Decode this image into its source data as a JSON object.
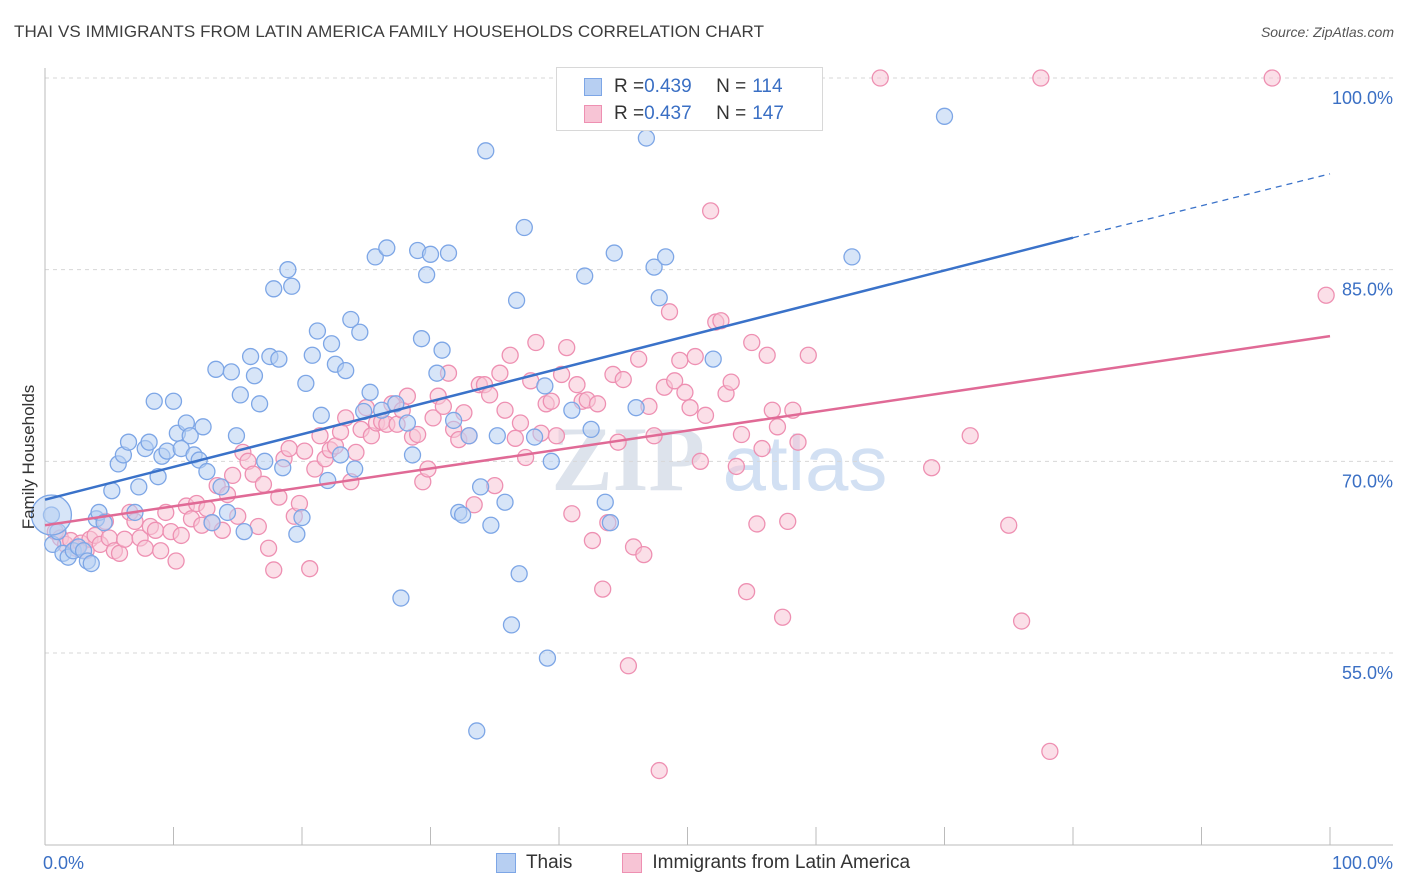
{
  "title": "THAI VS IMMIGRANTS FROM LATIN AMERICA FAMILY HOUSEHOLDS CORRELATION CHART",
  "source": "Source: ZipAtlas.com",
  "watermark": {
    "zip": "ZIP",
    "atlas": "atlas"
  },
  "legend": {
    "rows": [
      {
        "r_label": "R = ",
        "r_value": "0.439",
        "n_label": "N = ",
        "n_value": "114"
      },
      {
        "r_label": "R = ",
        "r_value": "0.437",
        "n_label": "N = ",
        "n_value": "147"
      }
    ]
  },
  "bottom_legend": {
    "thais": "Thais",
    "latin": "Immigrants from Latin America"
  },
  "colors": {
    "blue": "#3a72c9",
    "blue_fill": "#b7cff2",
    "blue_stroke": "#7da6e6",
    "pink": "#e06a96",
    "pink_fill": "#f7c4d5",
    "pink_stroke": "#ee90b2",
    "axis_text": "#3a6fc4",
    "grid": "#d7d7d7"
  },
  "chart_data": {
    "type": "scatter",
    "title": "THAI VS IMMIGRANTS FROM LATIN AMERICA FAMILY HOUSEHOLDS CORRELATION CHART",
    "xlabel": "",
    "ylabel": "Family Households",
    "xlim": [
      0,
      100
    ],
    "ylim": [
      40,
      102
    ],
    "x_tick_labels": [
      "0.0%",
      "100.0%"
    ],
    "y_ticks": [
      55,
      70,
      85,
      100
    ],
    "y_tick_labels": [
      "55.0%",
      "70.0%",
      "85.0%",
      "100.0%"
    ],
    "grid": "horizontal dashed",
    "legend_position": "top-center",
    "series": [
      {
        "name": "Thais",
        "color": "#3a72c9",
        "R": 0.439,
        "N": 114,
        "trend": {
          "x0": 0,
          "y0": 67.0,
          "x1": 80,
          "y1": 87.5,
          "dashed_to_x": 100,
          "dashed_to_y": 92.5
        },
        "points": [
          [
            0.5,
            65.8
          ],
          [
            0.6,
            63.5
          ],
          [
            1.0,
            64.5
          ],
          [
            1.4,
            62.8
          ],
          [
            1.8,
            62.5
          ],
          [
            2.2,
            63.0
          ],
          [
            2.6,
            63.3
          ],
          [
            3.0,
            63.0
          ],
          [
            3.3,
            62.2
          ],
          [
            3.6,
            62.0
          ],
          [
            4.0,
            65.5
          ],
          [
            4.2,
            66.0
          ],
          [
            4.6,
            65.2
          ],
          [
            5.2,
            67.7
          ],
          [
            5.7,
            69.8
          ],
          [
            6.1,
            70.5
          ],
          [
            6.5,
            71.5
          ],
          [
            7.0,
            66.0
          ],
          [
            7.3,
            68.0
          ],
          [
            7.8,
            71.0
          ],
          [
            8.1,
            71.5
          ],
          [
            8.5,
            74.7
          ],
          [
            8.8,
            68.8
          ],
          [
            9.1,
            70.4
          ],
          [
            9.5,
            70.8
          ],
          [
            10.0,
            74.7
          ],
          [
            10.3,
            72.2
          ],
          [
            10.6,
            71.0
          ],
          [
            11.0,
            73.0
          ],
          [
            11.3,
            72.0
          ],
          [
            11.6,
            70.5
          ],
          [
            12.0,
            70.1
          ],
          [
            12.3,
            72.7
          ],
          [
            12.6,
            69.2
          ],
          [
            13.0,
            65.2
          ],
          [
            13.3,
            77.2
          ],
          [
            13.7,
            68.0
          ],
          [
            14.2,
            66.0
          ],
          [
            14.5,
            77.0
          ],
          [
            14.9,
            72.0
          ],
          [
            15.2,
            75.2
          ],
          [
            15.5,
            64.5
          ],
          [
            16.0,
            78.2
          ],
          [
            16.3,
            76.7
          ],
          [
            16.7,
            74.5
          ],
          [
            17.1,
            70.0
          ],
          [
            17.5,
            78.2
          ],
          [
            17.8,
            83.5
          ],
          [
            18.2,
            78.0
          ],
          [
            18.5,
            69.5
          ],
          [
            18.9,
            85.0
          ],
          [
            19.2,
            83.7
          ],
          [
            19.6,
            64.3
          ],
          [
            20.0,
            65.6
          ],
          [
            20.3,
            76.1
          ],
          [
            20.8,
            78.3
          ],
          [
            21.2,
            80.2
          ],
          [
            21.5,
            73.6
          ],
          [
            22.0,
            68.5
          ],
          [
            22.3,
            79.2
          ],
          [
            22.6,
            77.6
          ],
          [
            23.0,
            70.5
          ],
          [
            23.4,
            77.1
          ],
          [
            23.8,
            81.1
          ],
          [
            24.1,
            69.4
          ],
          [
            24.5,
            80.1
          ],
          [
            24.8,
            73.9
          ],
          [
            25.3,
            75.4
          ],
          [
            25.7,
            86.0
          ],
          [
            26.2,
            74.0
          ],
          [
            26.6,
            86.7
          ],
          [
            27.3,
            74.5
          ],
          [
            27.7,
            59.3
          ],
          [
            28.2,
            73.0
          ],
          [
            28.6,
            70.5
          ],
          [
            29.0,
            86.5
          ],
          [
            29.3,
            79.6
          ],
          [
            29.7,
            84.6
          ],
          [
            30.0,
            86.2
          ],
          [
            30.5,
            76.9
          ],
          [
            30.9,
            78.7
          ],
          [
            31.4,
            86.3
          ],
          [
            31.8,
            73.2
          ],
          [
            32.2,
            66.0
          ],
          [
            32.5,
            65.8
          ],
          [
            33.0,
            72.0
          ],
          [
            33.6,
            48.9
          ],
          [
            33.9,
            68.0
          ],
          [
            34.3,
            94.3
          ],
          [
            34.7,
            65.0
          ],
          [
            35.2,
            72.0
          ],
          [
            35.8,
            66.8
          ],
          [
            36.3,
            57.2
          ],
          [
            36.7,
            82.6
          ],
          [
            36.9,
            61.2
          ],
          [
            37.3,
            88.3
          ],
          [
            38.1,
            71.9
          ],
          [
            38.9,
            75.9
          ],
          [
            39.1,
            54.6
          ],
          [
            39.4,
            70.0
          ],
          [
            41.0,
            74.0
          ],
          [
            42.0,
            84.5
          ],
          [
            42.5,
            72.5
          ],
          [
            43.6,
            66.8
          ],
          [
            44.0,
            65.2
          ],
          [
            44.3,
            86.3
          ],
          [
            46.8,
            95.3
          ],
          [
            47.4,
            85.2
          ],
          [
            47.8,
            82.8
          ],
          [
            48.3,
            86.0
          ],
          [
            62.8,
            86.0
          ],
          [
            70.0,
            97.0
          ],
          [
            46.0,
            74.2
          ],
          [
            52.0,
            78.0
          ]
        ]
      },
      {
        "name": "Immigrants from Latin America",
        "color": "#e06a96",
        "R": 0.437,
        "N": 147,
        "trend": {
          "x0": 0,
          "y0": 65.0,
          "x1": 100,
          "y1": 79.8
        },
        "points": [
          [
            0.8,
            64.5
          ],
          [
            1.2,
            64.0
          ],
          [
            1.6,
            63.5
          ],
          [
            2.0,
            63.8
          ],
          [
            2.4,
            63.2
          ],
          [
            2.8,
            63.6
          ],
          [
            3.2,
            63.0
          ],
          [
            3.5,
            63.9
          ],
          [
            3.9,
            64.2
          ],
          [
            4.3,
            63.5
          ],
          [
            4.7,
            65.3
          ],
          [
            5.0,
            64.0
          ],
          [
            5.4,
            63.0
          ],
          [
            5.8,
            62.8
          ],
          [
            6.2,
            63.9
          ],
          [
            6.6,
            66.0
          ],
          [
            7.0,
            65.3
          ],
          [
            7.4,
            64.0
          ],
          [
            7.8,
            63.2
          ],
          [
            8.2,
            64.9
          ],
          [
            8.6,
            64.6
          ],
          [
            9.0,
            63.0
          ],
          [
            9.4,
            66.0
          ],
          [
            9.8,
            64.5
          ],
          [
            10.2,
            62.2
          ],
          [
            10.6,
            64.2
          ],
          [
            11.0,
            66.5
          ],
          [
            11.4,
            65.5
          ],
          [
            11.8,
            66.7
          ],
          [
            12.2,
            65.0
          ],
          [
            12.6,
            66.3
          ],
          [
            13.0,
            65.2
          ],
          [
            13.4,
            68.1
          ],
          [
            13.8,
            64.6
          ],
          [
            14.2,
            67.4
          ],
          [
            14.6,
            68.9
          ],
          [
            15.0,
            65.7
          ],
          [
            15.4,
            70.7
          ],
          [
            15.8,
            70.0
          ],
          [
            16.2,
            69.0
          ],
          [
            16.6,
            64.9
          ],
          [
            17.0,
            68.2
          ],
          [
            17.4,
            63.2
          ],
          [
            17.8,
            61.5
          ],
          [
            18.2,
            67.2
          ],
          [
            18.6,
            70.2
          ],
          [
            19.0,
            71.0
          ],
          [
            19.4,
            65.7
          ],
          [
            19.8,
            66.7
          ],
          [
            20.2,
            70.8
          ],
          [
            20.6,
            61.6
          ],
          [
            21.0,
            69.4
          ],
          [
            21.4,
            72.0
          ],
          [
            21.8,
            70.2
          ],
          [
            22.2,
            70.9
          ],
          [
            22.6,
            71.2
          ],
          [
            23.0,
            72.3
          ],
          [
            23.4,
            73.4
          ],
          [
            23.8,
            68.4
          ],
          [
            24.2,
            70.7
          ],
          [
            24.6,
            72.5
          ],
          [
            25.0,
            74.2
          ],
          [
            25.4,
            72.0
          ],
          [
            25.8,
            73.0
          ],
          [
            26.2,
            73.1
          ],
          [
            26.6,
            72.9
          ],
          [
            27.0,
            74.5
          ],
          [
            27.4,
            72.9
          ],
          [
            27.8,
            74.0
          ],
          [
            28.2,
            75.1
          ],
          [
            28.6,
            71.9
          ],
          [
            29.0,
            72.1
          ],
          [
            29.4,
            68.4
          ],
          [
            29.8,
            69.4
          ],
          [
            30.2,
            73.4
          ],
          [
            30.6,
            75.1
          ],
          [
            31.0,
            74.3
          ],
          [
            31.4,
            76.9
          ],
          [
            31.8,
            72.5
          ],
          [
            32.2,
            71.7
          ],
          [
            32.6,
            73.8
          ],
          [
            33.0,
            72.0
          ],
          [
            33.4,
            66.6
          ],
          [
            33.8,
            76.0
          ],
          [
            34.2,
            76.0
          ],
          [
            34.6,
            75.2
          ],
          [
            35.0,
            68.1
          ],
          [
            35.4,
            76.9
          ],
          [
            35.8,
            74.0
          ],
          [
            36.2,
            78.3
          ],
          [
            36.6,
            71.8
          ],
          [
            37.0,
            73.0
          ],
          [
            37.4,
            70.3
          ],
          [
            37.8,
            76.3
          ],
          [
            38.2,
            79.3
          ],
          [
            38.6,
            72.2
          ],
          [
            39.0,
            74.5
          ],
          [
            39.4,
            74.7
          ],
          [
            39.8,
            72.0
          ],
          [
            40.2,
            76.8
          ],
          [
            40.6,
            78.9
          ],
          [
            41.0,
            65.9
          ],
          [
            41.4,
            76.0
          ],
          [
            41.8,
            74.7
          ],
          [
            42.2,
            74.8
          ],
          [
            42.6,
            63.8
          ],
          [
            43.0,
            74.5
          ],
          [
            43.4,
            60.0
          ],
          [
            43.8,
            65.2
          ],
          [
            44.2,
            76.8
          ],
          [
            44.6,
            71.5
          ],
          [
            45.0,
            76.4
          ],
          [
            45.4,
            54.0
          ],
          [
            45.8,
            63.3
          ],
          [
            46.2,
            78.0
          ],
          [
            46.6,
            62.7
          ],
          [
            47.0,
            74.3
          ],
          [
            47.4,
            72.0
          ],
          [
            47.8,
            45.8
          ],
          [
            48.2,
            75.8
          ],
          [
            48.6,
            81.7
          ],
          [
            49.0,
            76.3
          ],
          [
            49.4,
            77.9
          ],
          [
            49.8,
            75.4
          ],
          [
            50.2,
            74.2
          ],
          [
            50.6,
            78.2
          ],
          [
            51.0,
            70.0
          ],
          [
            51.4,
            73.6
          ],
          [
            51.8,
            89.6
          ],
          [
            52.2,
            80.9
          ],
          [
            52.6,
            81.0
          ],
          [
            53.0,
            75.3
          ],
          [
            53.4,
            76.2
          ],
          [
            53.8,
            69.6
          ],
          [
            54.2,
            72.1
          ],
          [
            54.6,
            59.8
          ],
          [
            55.0,
            79.3
          ],
          [
            55.4,
            65.1
          ],
          [
            55.8,
            71.0
          ],
          [
            56.2,
            78.3
          ],
          [
            56.6,
            74.0
          ],
          [
            57.0,
            72.7
          ],
          [
            57.4,
            57.8
          ],
          [
            57.8,
            65.3
          ],
          [
            58.2,
            74.0
          ],
          [
            58.6,
            71.5
          ],
          [
            59.0,
            100.0
          ],
          [
            59.4,
            78.3
          ],
          [
            95.5,
            100.0
          ],
          [
            65.0,
            100.0
          ],
          [
            77.5,
            100.0
          ],
          [
            99.7,
            83.0
          ],
          [
            78.2,
            47.3
          ],
          [
            76.0,
            57.5
          ],
          [
            75.0,
            65.0
          ],
          [
            72.0,
            72.0
          ],
          [
            69.0,
            69.5
          ]
        ]
      }
    ]
  }
}
